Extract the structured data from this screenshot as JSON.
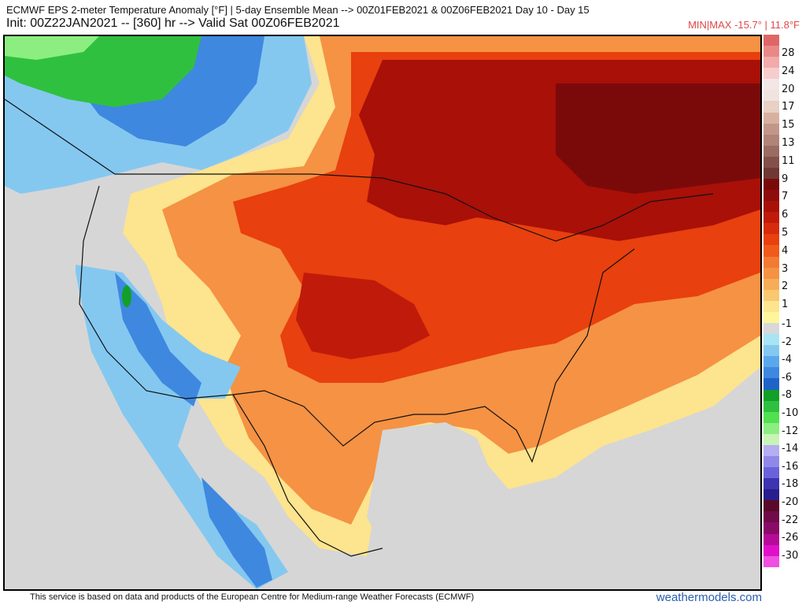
{
  "header": {
    "title": "ECMWF EPS 2-meter Temperature Anomaly [°F] | 5-day Ensemble Mean --> 00Z01FEB2021 & 00Z06FEB2021   Day 10 - Day 15",
    "init": "Init: 00Z22JAN2021 -- [360] hr --> Valid Sat 00Z06FEB2021",
    "minmax": "MIN|MAX -15.7° | 11.8°F"
  },
  "legend": {
    "ticks": [
      "28",
      "24",
      "20",
      "17",
      "15",
      "13",
      "11",
      "9",
      "7",
      "6",
      "5",
      "4",
      "3",
      "2",
      "1",
      "-1",
      "-2",
      "-4",
      "-6",
      "-8",
      "-10",
      "-12",
      "-14",
      "-16",
      "-18",
      "-20",
      "-22",
      "-26",
      "-30"
    ],
    "colors": [
      "#e06666",
      "#ea8888",
      "#f2aaaa",
      "#f7cccc",
      "#f3e6e6",
      "#efe4e0",
      "#e8d0c4",
      "#d8b0a0",
      "#c4968a",
      "#b08478",
      "#9a6c62",
      "#84504a",
      "#703834",
      "#7a0a0a",
      "#8e0c0c",
      "#a81008",
      "#c01a0a",
      "#d82a0c",
      "#e8400e",
      "#f05a1a",
      "#f37a32",
      "#f59244",
      "#f7ac58",
      "#f9c870",
      "#fde48e",
      "#fff59c",
      "#d8d8d8",
      "#a8e4f4",
      "#84c8f0",
      "#5aa8ec",
      "#3e88e0",
      "#1e64c8",
      "#12a028",
      "#30c040",
      "#50e050",
      "#8cee80",
      "#c8f4b8",
      "#b4aef0",
      "#9088e8",
      "#6a62d8",
      "#3c34b0",
      "#2a1e8c",
      "#5a0a28",
      "#700a48",
      "#8a0a68",
      "#b80a98",
      "#e010c8",
      "#f050e0"
    ],
    "accent_positive": "#d82a0c",
    "accent_negative": "#3e88e0"
  },
  "footer": {
    "disclaimer": "This service is based on data and products of the European Centre for Medium-range Weather Forecasts (ECMWF)",
    "brand": "weathermodels.com"
  }
}
